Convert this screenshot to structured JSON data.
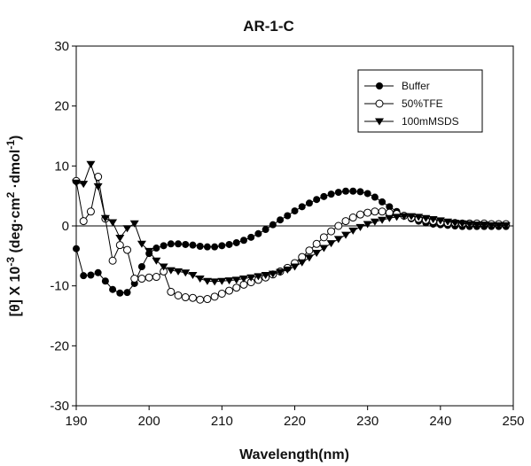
{
  "chart_data": {
    "type": "line",
    "title": "AR-1-C",
    "xlabel": "Wavelength(nm)",
    "ylabel": "[θ] X 10-3 (deg·cm2·dmol-1)",
    "xlim": [
      190,
      250
    ],
    "ylim": [
      -30,
      30
    ],
    "x_ticks": [
      "190",
      "200",
      "210",
      "220",
      "230",
      "240",
      "250"
    ],
    "y_ticks": [
      "30",
      "20",
      "10",
      "0",
      "-10",
      "-20",
      "-30"
    ],
    "x_tick_values": [
      190,
      200,
      210,
      220,
      230,
      240,
      250
    ],
    "y_tick_values": [
      30,
      20,
      10,
      0,
      -10,
      -20,
      -30
    ],
    "zero_line": true,
    "grid": false,
    "legend": "top-right",
    "series": [
      {
        "name": "Buffer",
        "marker": "filled-circle",
        "color": "#000000",
        "x": [
          190,
          191,
          192,
          193,
          194,
          195,
          196,
          197,
          198,
          199,
          200,
          201,
          202,
          203,
          204,
          205,
          206,
          207,
          208,
          209,
          210,
          211,
          212,
          213,
          214,
          215,
          216,
          217,
          218,
          219,
          220,
          221,
          222,
          223,
          224,
          225,
          226,
          227,
          228,
          229,
          230,
          231,
          232,
          233,
          234,
          235,
          236,
          237,
          238,
          239,
          240,
          241,
          242,
          243,
          244,
          245,
          246,
          247,
          248,
          249
        ],
        "y": [
          -3.8,
          -8.3,
          -8.2,
          -7.8,
          -9.2,
          -10.6,
          -11.2,
          -11.1,
          -9.6,
          -6.8,
          -4.6,
          -3.7,
          -3.3,
          -3.0,
          -3.0,
          -3.1,
          -3.2,
          -3.4,
          -3.5,
          -3.5,
          -3.3,
          -3.1,
          -2.8,
          -2.4,
          -1.9,
          -1.3,
          -0.6,
          0.2,
          1.0,
          1.7,
          2.5,
          3.2,
          3.8,
          4.4,
          4.9,
          5.3,
          5.6,
          5.8,
          5.8,
          5.7,
          5.4,
          4.8,
          4.0,
          3.2,
          2.4,
          1.7,
          1.2,
          0.8,
          0.5,
          0.3,
          0.2,
          0.1,
          0.0,
          -0.1,
          -0.1,
          -0.1,
          -0.1,
          -0.1,
          -0.1,
          -0.1
        ]
      },
      {
        "name": "50%TFE",
        "marker": "open-circle",
        "color": "#000000",
        "x": [
          190,
          191,
          192,
          193,
          194,
          195,
          196,
          197,
          198,
          199,
          200,
          201,
          202,
          203,
          204,
          205,
          206,
          207,
          208,
          209,
          210,
          211,
          212,
          213,
          214,
          215,
          216,
          217,
          218,
          219,
          220,
          221,
          222,
          223,
          224,
          225,
          226,
          227,
          228,
          229,
          230,
          231,
          232,
          233,
          234,
          235,
          236,
          237,
          238,
          239,
          240,
          241,
          242,
          243,
          244,
          245,
          246,
          247,
          248,
          249
        ],
        "y": [
          7.5,
          0.8,
          2.4,
          8.2,
          1.2,
          -5.8,
          -3.2,
          -4.0,
          -8.8,
          -8.8,
          -8.6,
          -8.5,
          -7.6,
          -11.0,
          -11.6,
          -11.9,
          -12.0,
          -12.3,
          -12.2,
          -11.8,
          -11.3,
          -10.8,
          -10.3,
          -9.8,
          -9.4,
          -9.0,
          -8.6,
          -8.1,
          -7.6,
          -7.0,
          -6.2,
          -5.2,
          -4.1,
          -3.0,
          -1.9,
          -0.9,
          0.0,
          0.8,
          1.4,
          1.9,
          2.2,
          2.4,
          2.4,
          2.2,
          2.0,
          1.7,
          1.4,
          1.2,
          1.0,
          0.8,
          0.6,
          0.5,
          0.5,
          0.4,
          0.4,
          0.4,
          0.4,
          0.3,
          0.3,
          0.3
        ]
      },
      {
        "name": "100mMSDS",
        "marker": "filled-triangle-down",
        "color": "#000000",
        "x": [
          190,
          191,
          192,
          193,
          194,
          195,
          196,
          197,
          198,
          199,
          200,
          201,
          202,
          203,
          204,
          205,
          206,
          207,
          208,
          209,
          210,
          211,
          212,
          213,
          214,
          215,
          216,
          217,
          218,
          219,
          220,
          221,
          222,
          223,
          224,
          225,
          226,
          227,
          228,
          229,
          230,
          231,
          232,
          233,
          234,
          235,
          236,
          237,
          238,
          239,
          240,
          241,
          242,
          243,
          244,
          245,
          246,
          247,
          248,
          249
        ],
        "y": [
          7.2,
          7.0,
          10.3,
          6.6,
          1.3,
          0.6,
          -2.0,
          -0.4,
          0.4,
          -3.0,
          -4.2,
          -5.8,
          -6.8,
          -7.4,
          -7.6,
          -7.8,
          -8.2,
          -8.8,
          -9.2,
          -9.3,
          -9.2,
          -9.1,
          -9.0,
          -8.8,
          -8.6,
          -8.4,
          -8.2,
          -8.0,
          -7.7,
          -7.3,
          -6.8,
          -6.1,
          -5.3,
          -4.5,
          -3.7,
          -2.9,
          -2.2,
          -1.5,
          -0.8,
          -0.2,
          0.3,
          0.7,
          1.0,
          1.3,
          1.5,
          1.6,
          1.6,
          1.5,
          1.3,
          1.1,
          0.9,
          0.7,
          0.5,
          0.4,
          0.3,
          0.2,
          0.2,
          0.1,
          0.1,
          0.1
        ]
      }
    ]
  }
}
